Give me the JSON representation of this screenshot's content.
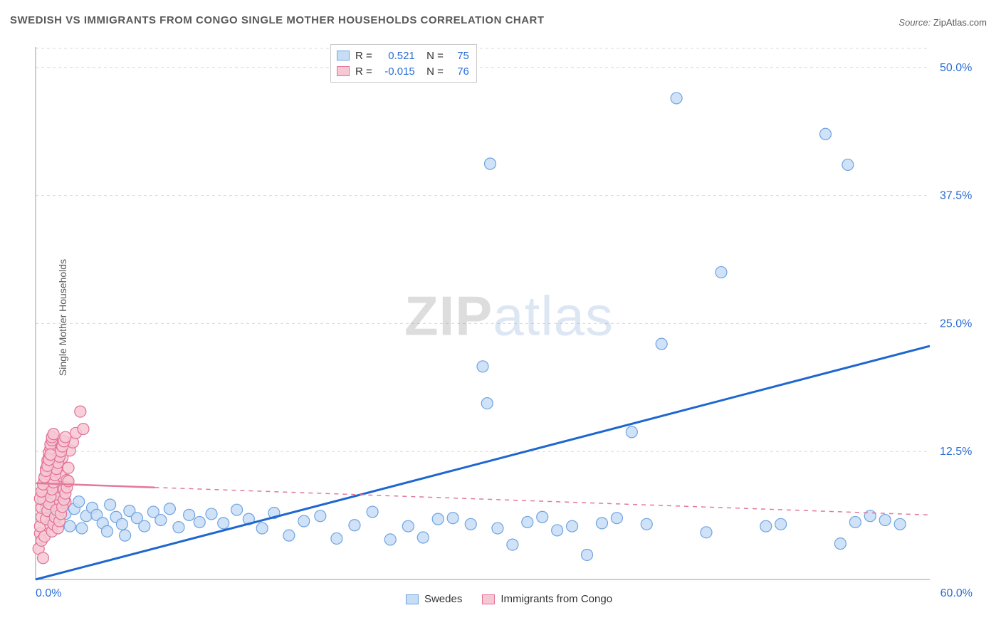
{
  "title": "SWEDISH VS IMMIGRANTS FROM CONGO SINGLE MOTHER HOUSEHOLDS CORRELATION CHART",
  "source_prefix": "Source:",
  "source_name": "ZipAtlas.com",
  "y_axis_label": "Single Mother Households",
  "watermark_zip": "ZIP",
  "watermark_atlas": "atlas",
  "chart": {
    "type": "scatter",
    "xlim": [
      0,
      60
    ],
    "ylim": [
      0,
      52
    ],
    "x_ticks": [
      0,
      60
    ],
    "x_tick_labels": [
      "0.0%",
      "60.0%"
    ],
    "y_ticks": [
      12.5,
      25.0,
      37.5,
      50.0
    ],
    "y_tick_labels": [
      "12.5%",
      "25.0%",
      "37.5%",
      "50.0%"
    ],
    "gridline_color": "#d9d9d9",
    "gridline_dash": "4,4",
    "axis_color": "#9e9e9e",
    "background_color": "#ffffff",
    "tick_label_color": "#2a6dd6",
    "marker_radius": 8,
    "marker_stroke_width": 1.2,
    "series": [
      {
        "id": "swedes",
        "label": "Swedes",
        "fill": "#c7ddf6",
        "stroke": "#6fa3e0",
        "points": [
          [
            0.5,
            8.0
          ],
          [
            0.7,
            7.1
          ],
          [
            0.9,
            6.0
          ],
          [
            1.1,
            9.2
          ],
          [
            1.3,
            5.8
          ],
          [
            1.5,
            7.9
          ],
          [
            1.8,
            8.5
          ],
          [
            2.0,
            6.4
          ],
          [
            2.3,
            5.2
          ],
          [
            2.6,
            6.9
          ],
          [
            2.9,
            7.6
          ],
          [
            3.1,
            5.0
          ],
          [
            3.4,
            6.2
          ],
          [
            3.8,
            7.0
          ],
          [
            4.1,
            6.3
          ],
          [
            4.5,
            5.5
          ],
          [
            5.0,
            7.3
          ],
          [
            5.4,
            6.1
          ],
          [
            5.8,
            5.4
          ],
          [
            6.3,
            6.7
          ],
          [
            6.8,
            6.0
          ],
          [
            7.3,
            5.2
          ],
          [
            7.9,
            6.6
          ],
          [
            8.4,
            5.8
          ],
          [
            9.0,
            6.9
          ],
          [
            9.6,
            5.1
          ],
          [
            10.3,
            6.3
          ],
          [
            11.0,
            5.6
          ],
          [
            11.8,
            6.4
          ],
          [
            12.6,
            5.5
          ],
          [
            13.5,
            6.8
          ],
          [
            14.3,
            5.9
          ],
          [
            15.2,
            5.0
          ],
          [
            16.0,
            6.5
          ],
          [
            17.0,
            4.3
          ],
          [
            18.0,
            5.7
          ],
          [
            19.1,
            6.2
          ],
          [
            20.2,
            4.0
          ],
          [
            21.4,
            5.3
          ],
          [
            22.6,
            6.6
          ],
          [
            23.8,
            3.9
          ],
          [
            25.0,
            5.2
          ],
          [
            26.0,
            4.1
          ],
          [
            27.0,
            5.9
          ],
          [
            28.0,
            6.0
          ],
          [
            29.2,
            5.4
          ],
          [
            30.0,
            20.8
          ],
          [
            30.3,
            17.2
          ],
          [
            30.5,
            40.6
          ],
          [
            31.0,
            5.0
          ],
          [
            32.0,
            3.4
          ],
          [
            33.0,
            5.6
          ],
          [
            34.0,
            6.1
          ],
          [
            35.0,
            4.8
          ],
          [
            36.0,
            5.2
          ],
          [
            37.0,
            2.4
          ],
          [
            38.0,
            5.5
          ],
          [
            39.0,
            6.0
          ],
          [
            40.0,
            14.4
          ],
          [
            41.0,
            5.4
          ],
          [
            42.0,
            23.0
          ],
          [
            43.0,
            47.0
          ],
          [
            45.0,
            4.6
          ],
          [
            46.0,
            30.0
          ],
          [
            49.0,
            5.2
          ],
          [
            50.0,
            5.4
          ],
          [
            53.0,
            43.5
          ],
          [
            54.5,
            40.5
          ],
          [
            55.0,
            5.6
          ],
          [
            56.0,
            6.2
          ],
          [
            57.0,
            5.8
          ],
          [
            58.0,
            5.4
          ],
          [
            54.0,
            3.5
          ],
          [
            6.0,
            4.3
          ],
          [
            4.8,
            4.7
          ]
        ],
        "trend": {
          "x1": 0,
          "y1": 0,
          "x2": 60,
          "y2": 22.8,
          "color": "#1e66d0",
          "width": 3,
          "dash": ""
        }
      },
      {
        "id": "congo",
        "label": "Immigrants from Congo",
        "fill": "#f6c8d4",
        "stroke": "#e36f95",
        "points": [
          [
            0.2,
            3.0
          ],
          [
            0.3,
            4.5
          ],
          [
            0.3,
            5.2
          ],
          [
            0.4,
            6.1
          ],
          [
            0.4,
            7.0
          ],
          [
            0.5,
            7.8
          ],
          [
            0.5,
            8.5
          ],
          [
            0.6,
            9.2
          ],
          [
            0.6,
            9.8
          ],
          [
            0.7,
            10.3
          ],
          [
            0.7,
            10.8
          ],
          [
            0.8,
            11.2
          ],
          [
            0.8,
            11.6
          ],
          [
            0.9,
            12.0
          ],
          [
            0.9,
            12.4
          ],
          [
            1.0,
            12.8
          ],
          [
            1.0,
            13.2
          ],
          [
            1.1,
            13.6
          ],
          [
            1.1,
            13.9
          ],
          [
            1.2,
            14.2
          ],
          [
            1.2,
            9.4
          ],
          [
            1.3,
            8.3
          ],
          [
            1.4,
            7.2
          ],
          [
            1.4,
            10.6
          ],
          [
            1.5,
            11.4
          ],
          [
            1.5,
            6.5
          ],
          [
            1.6,
            9.0
          ],
          [
            1.7,
            10.1
          ],
          [
            1.8,
            11.9
          ],
          [
            1.9,
            8.8
          ],
          [
            2.0,
            7.6
          ],
          [
            2.1,
            9.7
          ],
          [
            2.2,
            10.9
          ],
          [
            2.3,
            12.6
          ],
          [
            2.5,
            13.4
          ],
          [
            2.7,
            14.3
          ],
          [
            3.0,
            16.4
          ],
          [
            3.2,
            14.7
          ],
          [
            1.0,
            5.3
          ],
          [
            0.4,
            3.8
          ],
          [
            0.5,
            2.1
          ],
          [
            0.6,
            4.2
          ],
          [
            0.7,
            5.9
          ],
          [
            0.8,
            6.7
          ],
          [
            0.9,
            7.4
          ],
          [
            1.0,
            8.1
          ],
          [
            1.1,
            8.8
          ],
          [
            1.2,
            9.5
          ],
          [
            1.3,
            10.2
          ],
          [
            1.4,
            10.8
          ],
          [
            1.5,
            11.4
          ],
          [
            1.6,
            12.0
          ],
          [
            1.7,
            12.5
          ],
          [
            1.8,
            13.0
          ],
          [
            1.9,
            13.5
          ],
          [
            2.0,
            13.9
          ],
          [
            0.3,
            7.9
          ],
          [
            0.4,
            8.6
          ],
          [
            0.5,
            9.3
          ],
          [
            0.6,
            10.0
          ],
          [
            0.7,
            10.6
          ],
          [
            0.8,
            11.1
          ],
          [
            0.9,
            11.7
          ],
          [
            1.0,
            12.2
          ],
          [
            1.1,
            4.7
          ],
          [
            1.2,
            5.4
          ],
          [
            1.3,
            6.1
          ],
          [
            1.4,
            6.8
          ],
          [
            1.5,
            5.0
          ],
          [
            1.6,
            5.7
          ],
          [
            1.7,
            6.4
          ],
          [
            1.8,
            7.1
          ],
          [
            1.9,
            7.8
          ],
          [
            2.0,
            8.4
          ],
          [
            2.1,
            9.0
          ],
          [
            2.2,
            9.6
          ]
        ],
        "trend": {
          "x1": 0,
          "y1": 9.4,
          "x2": 60,
          "y2": 6.3,
          "color": "#e17a98",
          "width": 1.5,
          "dash": "6,6",
          "solid_until_x": 8
        }
      }
    ],
    "legend_top": {
      "rows": [
        {
          "swatch_fill": "#c7ddf6",
          "swatch_stroke": "#6fa3e0",
          "r_label": "R =",
          "r_value": "0.521",
          "n_label": "N =",
          "n_value": "75"
        },
        {
          "swatch_fill": "#f6c8d4",
          "swatch_stroke": "#e36f95",
          "r_label": "R =",
          "r_value": "-0.015",
          "n_label": "N =",
          "n_value": "76"
        }
      ]
    }
  }
}
